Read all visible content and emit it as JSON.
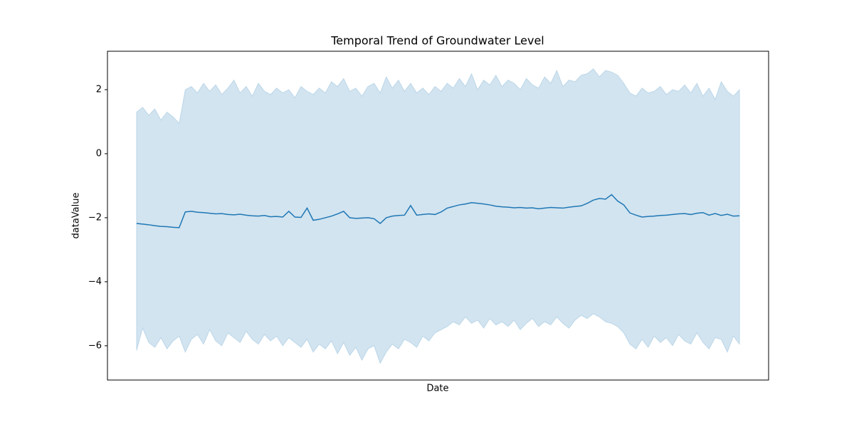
{
  "chart_data": {
    "type": "line",
    "title": "Temporal Trend of Groundwater Level",
    "x_label": "Date",
    "y_label": "dataValue",
    "color": "#1f77b4",
    "band_opacity": 0.2,
    "ylim": [
      -7.07,
      3.2
    ],
    "yticks": [
      {
        "value": -6,
        "label": "−6"
      },
      {
        "value": -4,
        "label": "−4"
      },
      {
        "value": -2,
        "label": "−2"
      },
      0,
      2
    ],
    "values": [
      -2.18,
      -2.2,
      -2.22,
      -2.25,
      -2.27,
      -2.28,
      -2.3,
      -2.31,
      -1.82,
      -1.8,
      -1.83,
      -1.84,
      -1.86,
      -1.88,
      -1.87,
      -1.9,
      -1.91,
      -1.89,
      -1.92,
      -1.94,
      -1.95,
      -1.93,
      -1.97,
      -1.96,
      -1.98,
      -1.8,
      -1.98,
      -1.99,
      -1.7,
      -2.08,
      -2.05,
      -2.0,
      -1.95,
      -1.88,
      -1.8,
      -2.0,
      -2.02,
      -2.01,
      -2.0,
      -2.03,
      -2.18,
      -2.0,
      -1.95,
      -1.93,
      -1.92,
      -1.62,
      -1.92,
      -1.9,
      -1.88,
      -1.9,
      -1.82,
      -1.7,
      -1.65,
      -1.6,
      -1.57,
      -1.53,
      -1.55,
      -1.57,
      -1.6,
      -1.64,
      -1.66,
      -1.67,
      -1.69,
      -1.68,
      -1.7,
      -1.69,
      -1.72,
      -1.7,
      -1.68,
      -1.69,
      -1.7,
      -1.67,
      -1.65,
      -1.63,
      -1.55,
      -1.45,
      -1.4,
      -1.42,
      -1.28,
      -1.48,
      -1.6,
      -1.85,
      -1.92,
      -1.98,
      -1.96,
      -1.95,
      -1.93,
      -1.92,
      -1.9,
      -1.88,
      -1.87,
      -1.9,
      -1.86,
      -1.84,
      -1.92,
      -1.87,
      -1.93,
      -1.89,
      -1.95,
      -1.94
    ],
    "upper": [
      1.3,
      1.45,
      1.2,
      1.4,
      1.05,
      1.3,
      1.15,
      0.95,
      2.0,
      2.1,
      1.9,
      2.2,
      1.95,
      2.15,
      1.85,
      2.05,
      2.3,
      1.9,
      2.1,
      1.8,
      2.2,
      1.95,
      1.85,
      2.05,
      1.9,
      2.0,
      1.75,
      2.1,
      1.95,
      1.85,
      2.05,
      1.9,
      2.25,
      2.1,
      2.35,
      1.95,
      2.05,
      1.8,
      2.1,
      2.2,
      1.9,
      2.4,
      2.05,
      2.3,
      1.95,
      2.2,
      1.9,
      2.05,
      1.85,
      2.1,
      1.95,
      2.2,
      2.05,
      2.35,
      2.1,
      2.5,
      2.0,
      2.3,
      2.15,
      2.45,
      2.1,
      2.3,
      2.2,
      2.0,
      2.35,
      2.15,
      2.05,
      2.4,
      2.2,
      2.6,
      2.1,
      2.3,
      2.25,
      2.45,
      2.5,
      2.65,
      2.4,
      2.6,
      2.55,
      2.45,
      2.2,
      1.9,
      1.8,
      2.05,
      1.9,
      1.95,
      2.1,
      1.85,
      2.0,
      1.95,
      2.15,
      1.9,
      2.2,
      1.8,
      2.05,
      1.7,
      2.25,
      1.95,
      1.8,
      2.0
    ],
    "lower": [
      -6.15,
      -5.45,
      -5.9,
      -6.05,
      -5.75,
      -6.1,
      -5.85,
      -5.7,
      -6.2,
      -5.8,
      -5.65,
      -5.95,
      -5.5,
      -5.85,
      -6.0,
      -5.6,
      -5.75,
      -5.9,
      -5.55,
      -5.8,
      -5.95,
      -5.65,
      -5.85,
      -5.7,
      -6.0,
      -5.75,
      -5.9,
      -6.05,
      -5.8,
      -6.2,
      -5.95,
      -6.1,
      -5.85,
      -6.25,
      -5.9,
      -6.3,
      -6.05,
      -6.45,
      -6.1,
      -6.0,
      -6.55,
      -6.2,
      -5.95,
      -6.1,
      -5.8,
      -5.9,
      -6.05,
      -5.7,
      -5.85,
      -5.6,
      -5.5,
      -5.4,
      -5.25,
      -5.35,
      -5.1,
      -5.3,
      -5.2,
      -5.45,
      -5.15,
      -5.35,
      -5.25,
      -5.4,
      -5.2,
      -5.5,
      -5.3,
      -5.15,
      -5.4,
      -5.25,
      -5.35,
      -5.1,
      -5.3,
      -5.45,
      -5.2,
      -5.05,
      -5.15,
      -5.0,
      -5.1,
      -5.25,
      -5.3,
      -5.4,
      -5.6,
      -5.95,
      -6.1,
      -5.8,
      -6.05,
      -5.7,
      -5.9,
      -5.75,
      -6.0,
      -5.65,
      -5.85,
      -5.95,
      -5.6,
      -5.9,
      -6.1,
      -5.75,
      -5.8,
      -6.2,
      -5.7,
      -5.95
    ]
  }
}
